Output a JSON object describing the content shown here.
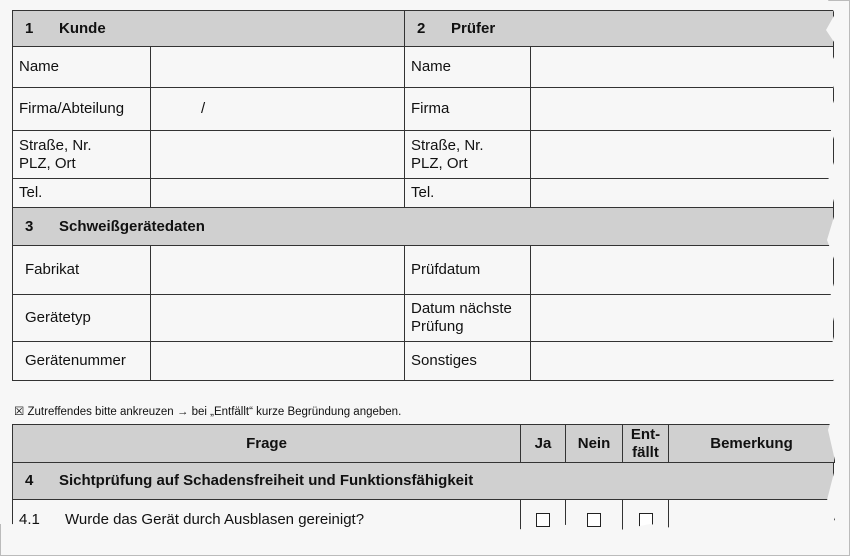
{
  "sec1": {
    "num": "1",
    "title": "Kunde",
    "rows": [
      {
        "label": "Name",
        "value": ""
      },
      {
        "label": "Firma/Abteilung",
        "value": "/"
      },
      {
        "label": "Straße, Nr.\nPLZ, Ort",
        "value": ""
      },
      {
        "label": "Tel.",
        "value": ""
      }
    ]
  },
  "sec2": {
    "num": "2",
    "title": "Prüfer",
    "rows": [
      {
        "label": "Name"
      },
      {
        "label": "Firma"
      },
      {
        "label": "Straße, Nr.\nPLZ, Ort"
      },
      {
        "label": "Tel."
      }
    ]
  },
  "sec3": {
    "num": "3",
    "title": "Schweißgerätedaten",
    "left": [
      "Fabrikat",
      "Gerätetyp",
      "Gerätenummer"
    ],
    "right": [
      "Prüfdatum",
      "Datum nächste\nPrüfung",
      "Sonstiges"
    ]
  },
  "note": "☒ Zutreffendes bitte ankreuzen → bei „Entfällt“ kurze Begründung angeben.",
  "table": {
    "headers": [
      "Frage",
      "Ja",
      "Nein",
      "Ent-\nfällt",
      "Bemerkung"
    ]
  },
  "sec4": {
    "num": "4",
    "title": "Sichtprüfung auf Schadensfreiheit und Funktionsfähigkeit",
    "items": [
      {
        "num": "4.1",
        "question": "Wurde das Gerät durch Ausblasen gereinigt?"
      }
    ]
  }
}
